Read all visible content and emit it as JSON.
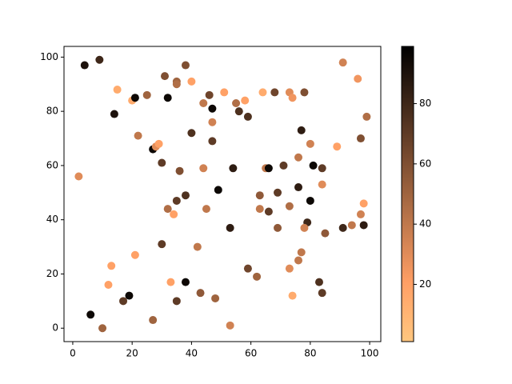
{
  "chart_data": {
    "type": "scatter",
    "colormap": "copper_r",
    "grid": false,
    "x": [
      4,
      9,
      2,
      15,
      14,
      20,
      21,
      25,
      22,
      27,
      28,
      29,
      31,
      32,
      35,
      35,
      38,
      40,
      44,
      46,
      47,
      51,
      55,
      56,
      58,
      59,
      64,
      68,
      73,
      74,
      78,
      91,
      96,
      99,
      40,
      47,
      47,
      30,
      36,
      44,
      54,
      65,
      66,
      71,
      77,
      80,
      81,
      84,
      76,
      89,
      97,
      84,
      76,
      80,
      63,
      69,
      66,
      63,
      73,
      79,
      78,
      69,
      85,
      91,
      94,
      97,
      98,
      98,
      49,
      38,
      35,
      32,
      34,
      45,
      53,
      30,
      42,
      21,
      13,
      12,
      59,
      62,
      73,
      76,
      77,
      74,
      83,
      84,
      33,
      43,
      38,
      48,
      35,
      17,
      19,
      6,
      10,
      27,
      53
    ],
    "y": [
      97,
      99,
      56,
      88,
      79,
      84,
      85,
      86,
      71,
      66,
      67,
      68,
      93,
      85,
      91,
      90,
      97,
      91,
      83,
      86,
      81,
      87,
      83,
      80,
      84,
      78,
      87,
      87,
      87,
      85,
      87,
      98,
      92,
      78,
      72,
      76,
      69,
      61,
      58,
      59,
      59,
      59,
      59,
      60,
      73,
      68,
      60,
      59,
      63,
      67,
      70,
      53,
      52,
      47,
      49,
      50,
      43,
      44,
      45,
      39,
      37,
      37,
      35,
      37,
      38,
      42,
      46,
      38,
      51,
      49,
      47,
      44,
      42,
      44,
      37,
      31,
      30,
      27,
      23,
      16,
      22,
      19,
      22,
      25,
      28,
      12,
      17,
      13,
      17,
      13,
      17,
      11,
      10,
      10,
      12,
      5,
      0,
      3,
      1
    ],
    "c": [
      90,
      80,
      30,
      15,
      90,
      15,
      95,
      50,
      40,
      95,
      30,
      20,
      60,
      95,
      50,
      45,
      60,
      20,
      40,
      65,
      95,
      20,
      45,
      75,
      20,
      75,
      15,
      65,
      30,
      25,
      60,
      35,
      25,
      45,
      75,
      35,
      70,
      70,
      60,
      35,
      85,
      40,
      95,
      70,
      85,
      35,
      95,
      70,
      40,
      20,
      60,
      30,
      85,
      95,
      55,
      70,
      70,
      40,
      45,
      80,
      35,
      55,
      55,
      80,
      40,
      35,
      20,
      85,
      95,
      75,
      70,
      45,
      20,
      40,
      85,
      70,
      40,
      20,
      20,
      20,
      65,
      50,
      30,
      40,
      40,
      15,
      75,
      70,
      20,
      55,
      95,
      50,
      70,
      70,
      95,
      95,
      50,
      50,
      35
    ],
    "xlim": [
      -2.95,
      103.75
    ],
    "ylim": [
      -4.95,
      103.95
    ],
    "xticks": [
      0,
      20,
      40,
      60,
      80,
      100
    ],
    "yticks": [
      0,
      20,
      40,
      60,
      80,
      100
    ],
    "clim": [
      1,
      99
    ],
    "cticks": [
      20,
      40,
      60,
      80
    ]
  }
}
